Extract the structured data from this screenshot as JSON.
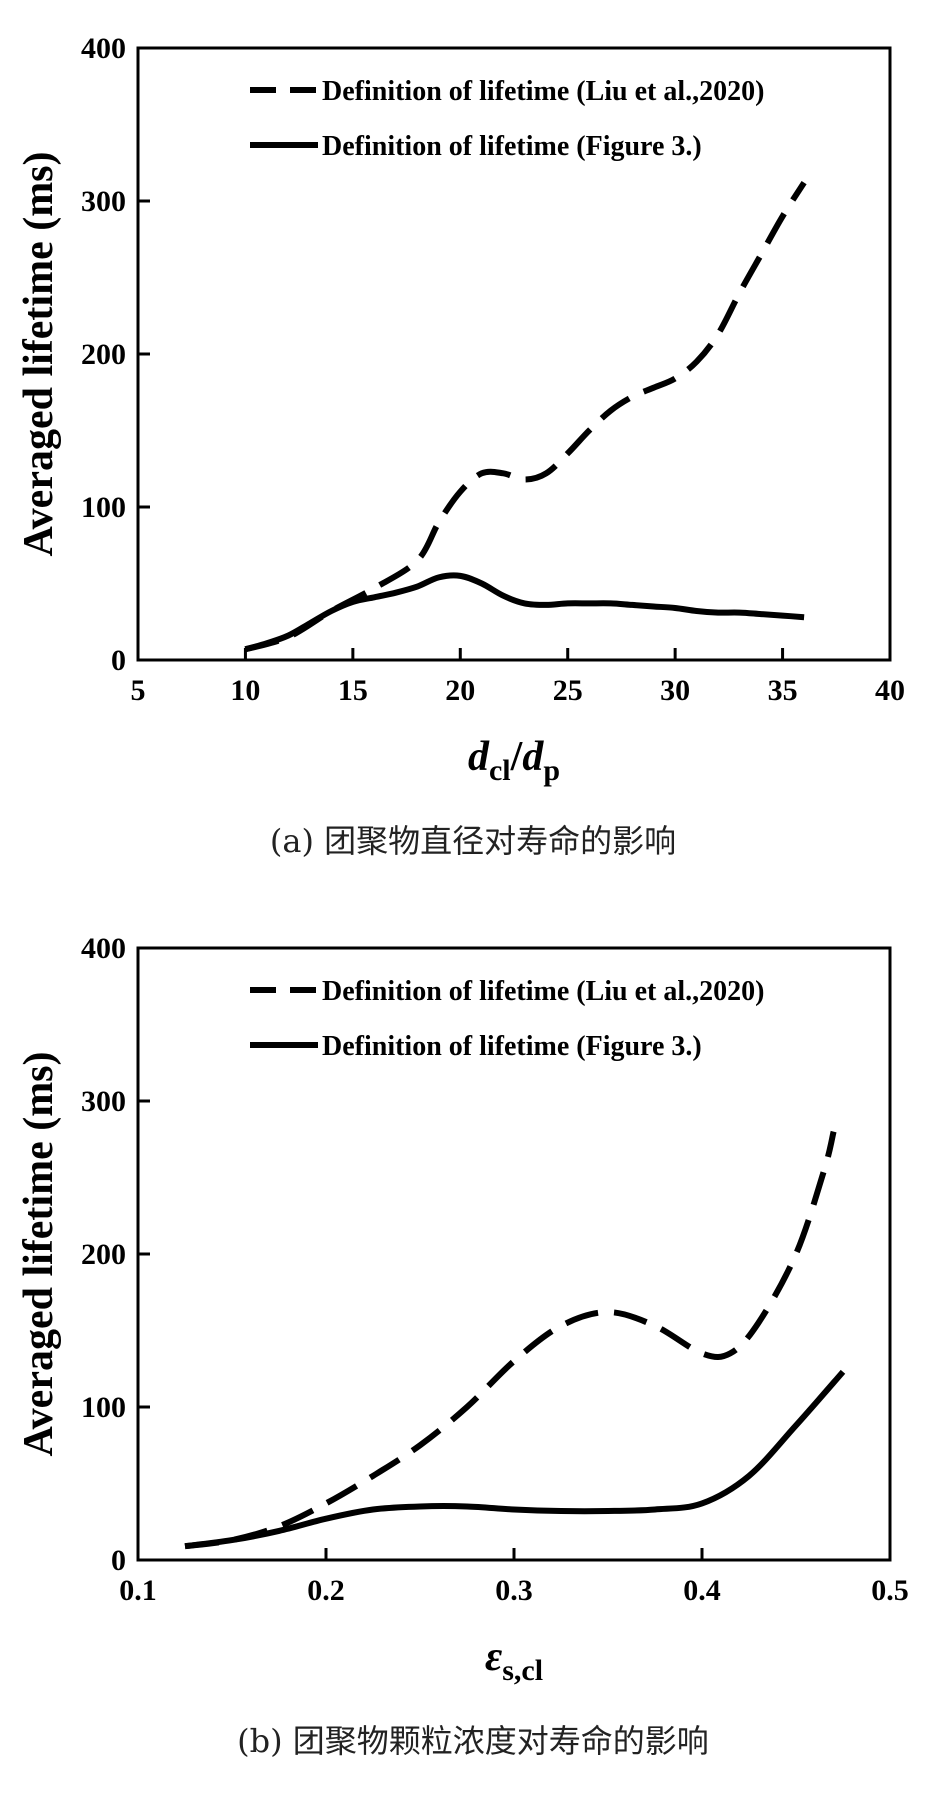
{
  "chart_data": [
    {
      "id": "a",
      "type": "line",
      "caption": "(a) 团聚物直径对寿命的影响",
      "xlabel_main": "d",
      "xlabel_sub1": "cl",
      "xlabel_slash": "/",
      "xlabel_main2": "d",
      "xlabel_sub2": "p",
      "ylabel": "Averaged lifetime (ms)",
      "xlim": [
        5,
        40
      ],
      "ylim": [
        0,
        400
      ],
      "xticks": [
        "5",
        "10",
        "15",
        "20",
        "25",
        "30",
        "35",
        "40"
      ],
      "xtick_values": [
        5,
        10,
        15,
        20,
        25,
        30,
        35,
        40
      ],
      "yticks": [
        "0",
        "100",
        "200",
        "300",
        "400"
      ],
      "ytick_values": [
        0,
        100,
        200,
        300,
        400
      ],
      "legend_position": "top-left",
      "grid": false,
      "series": [
        {
          "name": "Definition of lifetime (Liu et al.,2020)",
          "style": "dashed",
          "x": [
            10,
            12,
            14,
            16,
            18,
            19,
            20,
            21,
            22,
            23,
            24,
            25,
            26,
            27,
            28,
            29,
            30,
            31,
            32,
            33,
            34,
            35,
            36
          ],
          "y": [
            7,
            15,
            32,
            47,
            65,
            90,
            110,
            122,
            122,
            118,
            122,
            135,
            150,
            163,
            172,
            178,
            184,
            195,
            213,
            240,
            265,
            290,
            312
          ]
        },
        {
          "name": "Definition of lifetime (Figure 3.)",
          "style": "solid",
          "x": [
            10,
            11,
            12,
            13,
            14,
            15,
            16,
            17,
            18,
            19,
            20,
            21,
            22,
            23,
            24,
            25,
            26,
            27,
            28,
            29,
            30,
            31,
            32,
            33,
            34,
            35,
            36
          ],
          "y": [
            7,
            11,
            16,
            24,
            32,
            38,
            41,
            44,
            48,
            54,
            55,
            50,
            42,
            37,
            36,
            37,
            37,
            37,
            36,
            35,
            34,
            32,
            31,
            31,
            30,
            29,
            28
          ]
        }
      ]
    },
    {
      "id": "b",
      "type": "line",
      "caption": "(b) 团聚物颗粒浓度对寿命的影响",
      "xlabel_main": "ε",
      "xlabel_sub1": "s,cl",
      "ylabel": "Averaged lifetime (ms)",
      "xlim": [
        0.1,
        0.5
      ],
      "ylim": [
        0,
        400
      ],
      "xticks": [
        "0.1",
        "0.2",
        "0.3",
        "0.4",
        "0.5"
      ],
      "xtick_values": [
        0.1,
        0.2,
        0.3,
        0.4,
        0.5
      ],
      "yticks": [
        "0",
        "100",
        "200",
        "300",
        "400"
      ],
      "ytick_values": [
        0,
        100,
        200,
        300,
        400
      ],
      "legend_position": "top-left",
      "grid": false,
      "series": [
        {
          "name": "Definition of lifetime (Liu et al.,2020)",
          "style": "dashed",
          "x": [
            0.125,
            0.15,
            0.175,
            0.2,
            0.225,
            0.25,
            0.275,
            0.3,
            0.325,
            0.35,
            0.375,
            0.4,
            0.415,
            0.43,
            0.45,
            0.465,
            0.47
          ],
          "y": [
            9,
            13,
            22,
            37,
            55,
            75,
            100,
            130,
            153,
            162,
            153,
            135,
            135,
            155,
            200,
            255,
            280
          ]
        },
        {
          "name": "Definition of lifetime (Figure 3.)",
          "style": "solid",
          "x": [
            0.125,
            0.15,
            0.175,
            0.2,
            0.225,
            0.25,
            0.275,
            0.3,
            0.325,
            0.35,
            0.375,
            0.4,
            0.425,
            0.45,
            0.475
          ],
          "y": [
            9,
            13,
            19,
            27,
            33,
            35,
            35,
            33,
            32,
            32,
            33,
            37,
            55,
            88,
            123
          ]
        }
      ]
    }
  ]
}
